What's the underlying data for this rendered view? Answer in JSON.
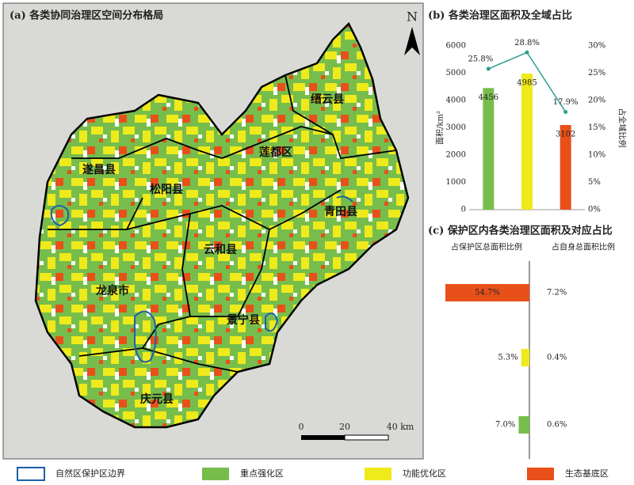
{
  "map": {
    "title": "(a) 各类协同治理区空间分布格局",
    "north": "N",
    "counties": [
      "缙云县",
      "莲都区",
      "遂昌县",
      "松阳县",
      "青田县",
      "云和县",
      "龙泉市",
      "景宁县",
      "庆元县"
    ],
    "scale_labels": [
      "0",
      "20",
      "40 km"
    ]
  },
  "chart_data": [
    {
      "type": "bar",
      "title": "(b) 各类治理区面积及全域占比",
      "ylabel": "面积/km²",
      "y2label": "占全域比例",
      "categories": [
        null,
        null,
        null
      ],
      "ylim": [
        0,
        6000
      ],
      "yticks": [
        0,
        1000,
        2000,
        3000,
        4000,
        5000,
        6000
      ],
      "y2lim": [
        0,
        30
      ],
      "y2ticks": [
        {
          "value": 0,
          "label": "0%"
        },
        {
          "value": 5,
          "label": "5%"
        },
        {
          "value": 10,
          "label": "10%"
        },
        {
          "value": 15,
          "label": "15%"
        },
        {
          "value": 20,
          "label": "20%"
        },
        {
          "value": 25,
          "label": "25%"
        },
        {
          "value": 30,
          "label": "30%"
        }
      ],
      "series": [
        {
          "type": "bar",
          "colors": [
            "#77bd4c",
            "#eeea1c",
            "#e8501a"
          ],
          "values": [
            4456,
            4985,
            3102
          ]
        },
        {
          "type": "line",
          "axis": "y2",
          "color": "#2a9d8f",
          "values": [
            25.8,
            28.8,
            17.9
          ],
          "value_labels": [
            "25.8%",
            "28.8%",
            "17.9%"
          ]
        }
      ]
    },
    {
      "type": "bar",
      "orientation": "horizontal",
      "title": "(c) 保护区内各类治理区面积及对应占比",
      "left_label": "占保护区总面积比例",
      "right_label": "占自身总面积比例",
      "categories": [
        null,
        null,
        null
      ],
      "series": [
        {
          "colors": [
            "#e8501a",
            "#eeea1c",
            "#77bd4c"
          ],
          "values": [
            54.7,
            5.3,
            7.0
          ],
          "value_labels": [
            "54.7%",
            "5.3%",
            "7.0%"
          ]
        },
        {
          "values": [
            7.2,
            0.4,
            0.6
          ],
          "value_labels": [
            "7.2%",
            "0.4%",
            "0.6%"
          ]
        }
      ]
    }
  ],
  "legend": [
    {
      "label": "自然区保护区边界",
      "color": "#1f5fa8",
      "style": "outline"
    },
    {
      "label": "重点强化区",
      "color": "#77bd4c",
      "style": "fill"
    },
    {
      "label": "功能优化区",
      "color": "#eeea1c",
      "style": "fill"
    },
    {
      "label": "生态基底区",
      "color": "#e8501a",
      "style": "fill"
    }
  ]
}
